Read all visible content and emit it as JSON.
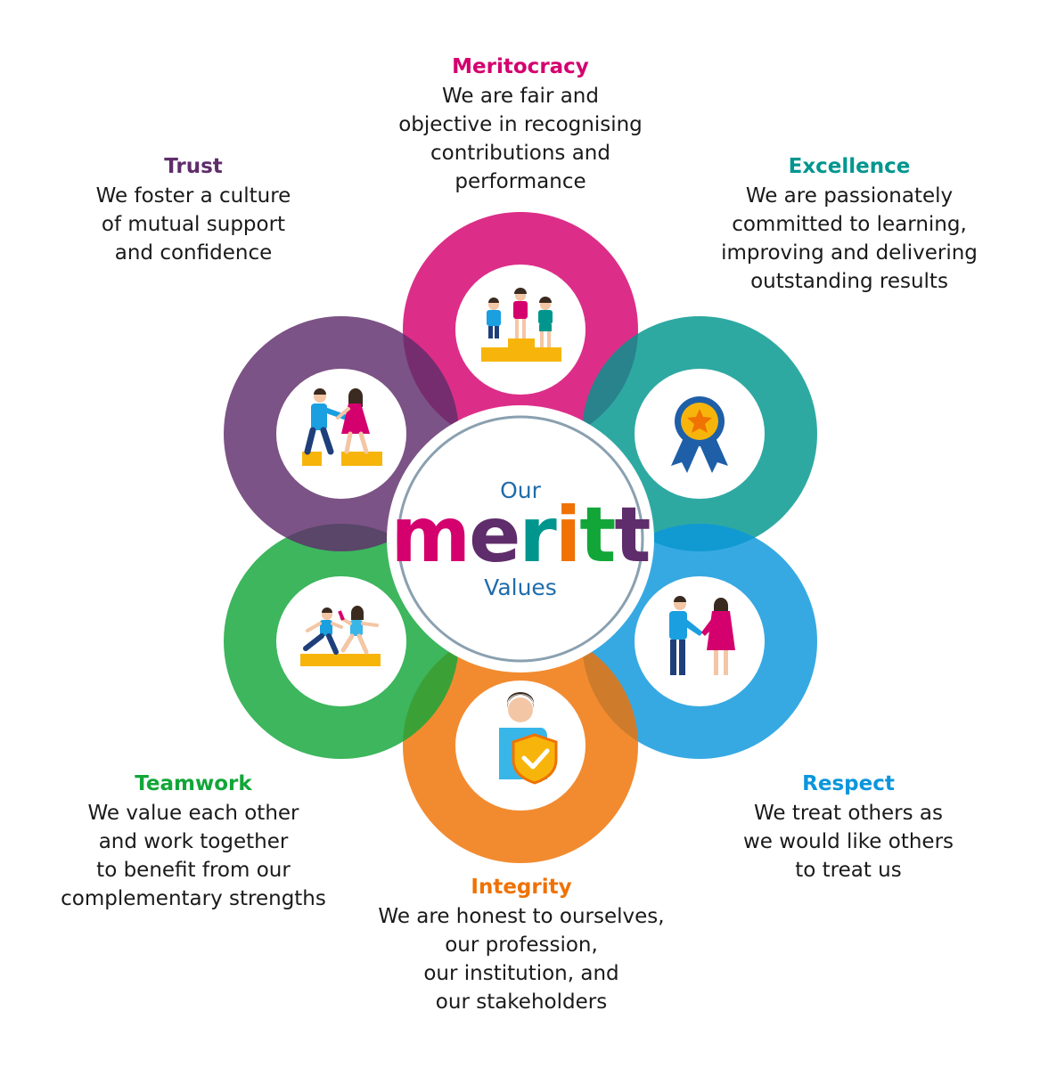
{
  "center": {
    "top_label": "Our",
    "brand_letters": [
      {
        "char": "m",
        "color": "#d4006e"
      },
      {
        "char": "e",
        "color": "#5f2d6b"
      },
      {
        "char": "r",
        "color": "#00968e"
      },
      {
        "char": "i",
        "color": "#ef7203"
      },
      {
        "char": "t",
        "color": "#12a639"
      },
      {
        "char": "t",
        "color": "#5f2d6b"
      }
    ],
    "bottom_label": "Values"
  },
  "values": [
    {
      "key": "meritocracy",
      "title": "Meritocracy",
      "color": "#d4006e",
      "icon": "podium-icon",
      "desc": "We are fair and\nobjective in recognising\ncontributions and\nperformance"
    },
    {
      "key": "excellence",
      "title": "Excellence",
      "color": "#00968e",
      "icon": "award-ribbon-icon",
      "desc": "We are passionately\ncommitted to learning,\nimproving and delivering\noutstanding results"
    },
    {
      "key": "respect",
      "title": "Respect",
      "color": "#0b96dc",
      "icon": "handshake-icon",
      "desc": "We treat others as\nwe would like others\nto treat us"
    },
    {
      "key": "integrity",
      "title": "Integrity",
      "color": "#ef7203",
      "icon": "shield-person-icon",
      "desc": "We are honest to ourselves,\nour profession,\nour institution, and\nour stakeholders"
    },
    {
      "key": "teamwork",
      "title": "Teamwork",
      "color": "#12a639",
      "icon": "relay-race-icon",
      "desc": "We value each other\nand work together\nto benefit from our\ncomplementary strengths"
    },
    {
      "key": "trust",
      "title": "Trust",
      "color": "#5f2d6b",
      "icon": "helping-hand-icon",
      "desc": "We foster a culture\nof mutual support\nand confidence"
    }
  ]
}
